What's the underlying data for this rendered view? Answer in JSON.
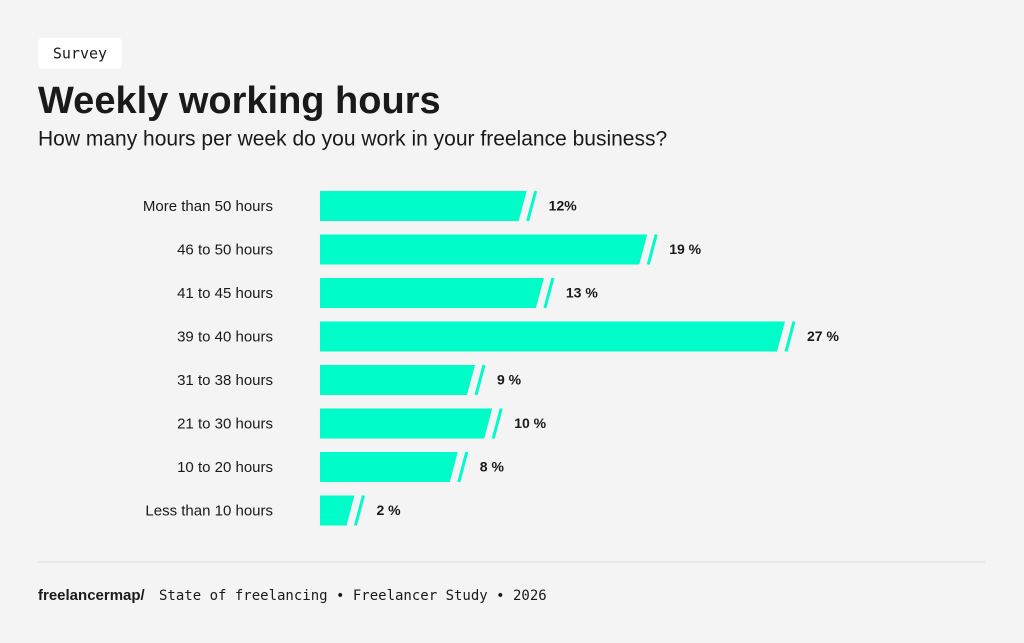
{
  "badge": "Survey",
  "chart_data": {
    "type": "bar",
    "orientation": "horizontal",
    "title": "Weekly working hours",
    "subtitle": "How many hours per week do you work in your freelance business?",
    "categories": [
      "More than 50 hours",
      "46 to 50 hours",
      "41 to 45 hours",
      "39 to 40 hours",
      "31 to 38 hours",
      "21 to 30 hours",
      "10 to 20 hours",
      "Less than 10 hours"
    ],
    "values": [
      12,
      19,
      13,
      27,
      9,
      10,
      8,
      2
    ],
    "value_labels": [
      "12%",
      "19 %",
      "13 %",
      "27 %",
      "9 %",
      "10 %",
      "8 %",
      "2 %"
    ],
    "color": "#00fcc9"
  },
  "footer": {
    "brand": "freelancermap/",
    "text": "State of freelancing • Freelancer Study • 2026"
  }
}
